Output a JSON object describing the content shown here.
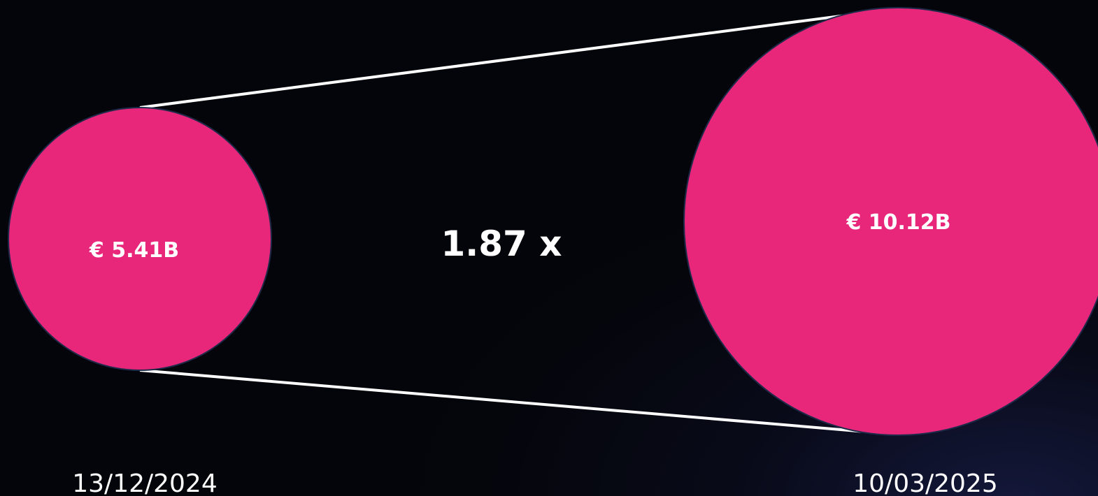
{
  "comparison": {
    "ratio_label": "1.87 x",
    "start": {
      "value_label": "€ 5.41B",
      "value": 5.41,
      "unit": "B",
      "currency": "€",
      "date": "13/12/2024"
    },
    "end": {
      "value_label": "€ 10.12B",
      "value": 10.12,
      "unit": "B",
      "currency": "€",
      "date": "10/03/2025"
    }
  },
  "colors": {
    "circle_fill": "#e8267a",
    "circle_stroke": "#1f2a4a",
    "connector": "#ffffff",
    "text": "#ffffff",
    "background": "#05060d"
  }
}
